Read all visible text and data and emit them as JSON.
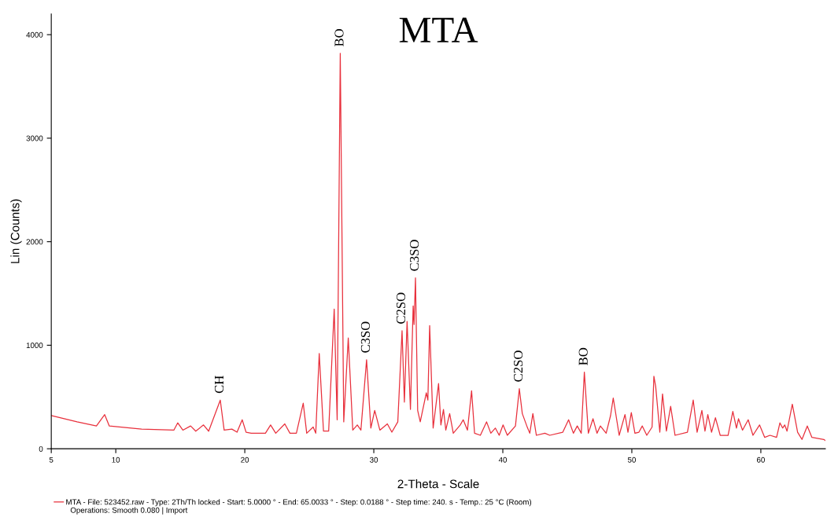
{
  "chart_data": {
    "type": "line",
    "title": "MTA",
    "xlabel": "2-Theta - Scale",
    "ylabel": "Lin (Counts)",
    "xlim": [
      5,
      65
    ],
    "ylim": [
      0,
      4200
    ],
    "xticks": [
      5,
      10,
      20,
      30,
      40,
      50,
      60
    ],
    "yticks": [
      0,
      1000,
      2000,
      3000,
      4000
    ],
    "grid": false,
    "legend": "bottom left",
    "marker": "none",
    "line_style": "solid",
    "series": [
      {
        "name": "MTA - File: 523452.raw - Type: 2Th/Th locked - Start: 5.0000 ° - End: 65.0033 ° - Step: 0.0188 ° - Step time: 240. s - Temp.: 25 °C (Room)",
        "color": "#e8303c",
        "x": [
          5,
          7,
          8.5,
          9.14,
          9.5,
          12,
          14.5,
          14.8,
          15.2,
          15.8,
          16.2,
          16.8,
          17.2,
          18.1,
          18.4,
          19,
          19.4,
          19.8,
          20.1,
          20.5,
          21.6,
          22,
          22.4,
          23.1,
          23.5,
          24,
          24.53,
          24.8,
          25.3,
          25.5,
          25.77,
          26.1,
          26.5,
          26.93,
          27.16,
          27.4,
          27.67,
          28.02,
          28.37,
          28.72,
          29.0,
          29.44,
          29.77,
          30.07,
          30.47,
          31.05,
          31.4,
          31.86,
          32.19,
          32.37,
          32.58,
          32.84,
          33.05,
          33.12,
          33.23,
          33.4,
          33.6,
          34.07,
          34.19,
          34.33,
          34.6,
          35.02,
          35.2,
          35.4,
          35.58,
          35.88,
          36.16,
          36.7,
          36.93,
          37.26,
          37.58,
          37.81,
          38.26,
          38.74,
          39.07,
          39.42,
          39.72,
          40.02,
          40.35,
          40.98,
          41.28,
          41.51,
          41.86,
          42.09,
          42.33,
          42.6,
          43.26,
          43.64,
          44.65,
          45.1,
          45.47,
          45.77,
          46.08,
          46.32,
          46.63,
          46.99,
          47.3,
          47.56,
          48.01,
          48.35,
          48.56,
          49.02,
          49.47,
          49.7,
          49.96,
          50.24,
          50.55,
          50.81,
          51.16,
          51.57,
          51.71,
          51.85,
          52.17,
          52.38,
          52.68,
          53.01,
          53.35,
          54.31,
          54.76,
          55.06,
          55.43,
          55.67,
          55.89,
          56.18,
          56.48,
          56.85,
          57.46,
          57.83,
          58.11,
          58.27,
          58.58,
          59.02,
          59.39,
          59.9,
          60.3,
          60.71,
          61.22,
          61.48,
          61.69,
          61.85,
          62.03,
          62.44,
          62.85,
          63.19,
          63.6,
          63.96,
          64.88,
          65
        ],
        "values": [
          320,
          260,
          220,
          330,
          220,
          190,
          180,
          250,
          180,
          220,
          170,
          230,
          170,
          470,
          180,
          190,
          160,
          280,
          160,
          150,
          150,
          230,
          150,
          240,
          150,
          150,
          440,
          150,
          210,
          150,
          920,
          170,
          170,
          1350,
          280,
          3820,
          260,
          1070,
          180,
          230,
          180,
          860,
          200,
          370,
          180,
          240,
          160,
          260,
          1140,
          450,
          1230,
          380,
          1380,
          1200,
          1650,
          370,
          260,
          540,
          470,
          1190,
          200,
          630,
          230,
          380,
          180,
          340,
          150,
          230,
          280,
          180,
          560,
          150,
          130,
          260,
          150,
          200,
          130,
          230,
          130,
          220,
          580,
          340,
          220,
          150,
          340,
          130,
          150,
          130,
          160,
          280,
          150,
          220,
          150,
          740,
          150,
          290,
          150,
          220,
          150,
          320,
          490,
          130,
          330,
          160,
          350,
          150,
          160,
          220,
          130,
          210,
          700,
          600,
          160,
          530,
          170,
          410,
          130,
          160,
          470,
          160,
          370,
          170,
          330,
          160,
          300,
          130,
          130,
          360,
          200,
          290,
          180,
          280,
          130,
          230,
          110,
          130,
          110,
          250,
          200,
          230,
          170,
          430,
          160,
          90,
          220,
          110,
          90,
          80
        ]
      }
    ],
    "annotations": [
      {
        "text": "CH",
        "x": 18.1,
        "y": 470
      },
      {
        "text": "BO",
        "x": 27.4,
        "y": 3820
      },
      {
        "text": "C3SO",
        "x": 29.44,
        "y": 860
      },
      {
        "text": "C2SO",
        "x": 32.19,
        "y": 1140
      },
      {
        "text": "C3SO",
        "x": 33.23,
        "y": 1650
      },
      {
        "text": "C2SO",
        "x": 41.28,
        "y": 580
      },
      {
        "text": "BO",
        "x": 46.32,
        "y": 740
      },
      "Operations: Smooth 0.080 | Import"
    ]
  }
}
